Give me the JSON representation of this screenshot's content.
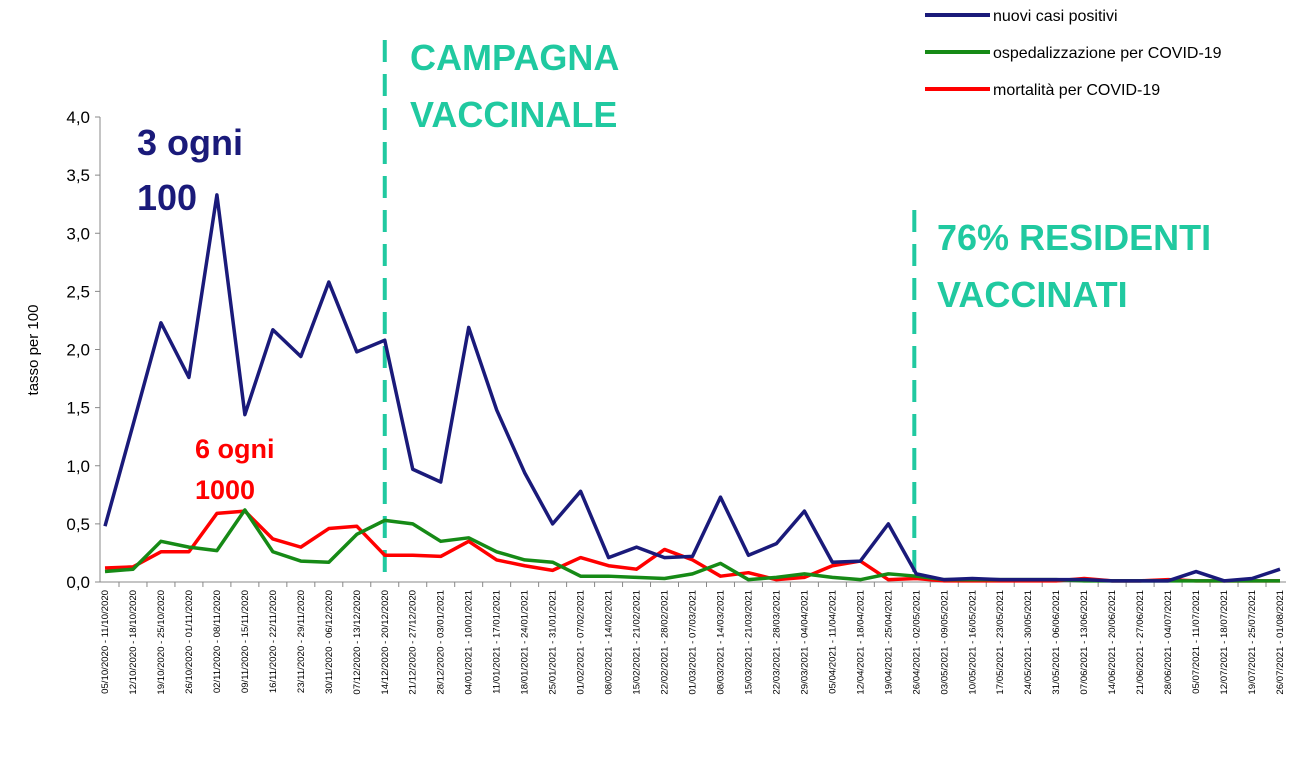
{
  "chart_data": {
    "type": "line",
    "y_label": "tasso per 100",
    "categories": [
      "05/10/2020 - 11/10/2020",
      "12/10/2020 - 18/10/2020",
      "19/10/2020 - 25/10/2020",
      "26/10/2020 - 01/11/2020",
      "02/11/2020 - 08/11/2020",
      "09/11/2020 - 15/11/2020",
      "16/11/2020 - 22/11/2020",
      "23/11/2020 - 29/11/2020",
      "30/11/2020 - 06/12/2020",
      "07/12/2020 - 13/12/2020",
      "14/12/2020 - 20/12/2020",
      "21/12/2020 - 27/12/2020",
      "28/12/2020 - 03/01/2021",
      "04/01/2021 - 10/01/2021",
      "11/01/2021 - 17/01/2021",
      "18/01/2021 - 24/01/2021",
      "25/01/2021 - 31/01/2021",
      "01/02/2021 - 07/02/2021",
      "08/02/2021 - 14/02/2021",
      "15/02/2021 - 21/02/2021",
      "22/02/2021 - 28/02/2021",
      "01/03/2021 - 07/03/2021",
      "08/03/2021 - 14/03/2021",
      "15/03/2021 - 21/03/2021",
      "22/03/2021 - 28/03/2021",
      "29/03/2021 - 04/04/2021",
      "05/04/2021 - 11/04/2021",
      "12/04/2021 - 18/04/2021",
      "19/04/2021 - 25/04/2021",
      "26/04/2021 - 02/05/2021",
      "03/05/2021 - 09/05/2021",
      "10/05/2021 - 16/05/2021",
      "17/05/2021 - 23/05/2021",
      "24/05/2021 - 30/05/2021",
      "31/05/2021 - 06/06/2021",
      "07/06/2021 - 13/06/2021",
      "14/06/2021 - 20/06/2021",
      "21/06/2021 - 27/06/2021",
      "28/06/2021 - 04/07/2021",
      "05/07/2021 - 11/07/2021",
      "12/07/2021 - 18/07/2021",
      "19/07/2021 - 25/07/2021",
      "26/07/2021 - 01/08/2021"
    ],
    "series": [
      {
        "name": "nuovi casi positivi",
        "color": "#1a1a7a",
        "values": [
          0.48,
          1.35,
          2.23,
          1.76,
          3.33,
          1.44,
          2.17,
          1.94,
          2.58,
          1.98,
          2.08,
          0.97,
          0.86,
          2.19,
          1.48,
          0.94,
          0.5,
          0.78,
          0.21,
          0.3,
          0.21,
          0.22,
          0.73,
          0.23,
          0.33,
          0.61,
          0.17,
          0.18,
          0.5,
          0.07,
          0.02,
          0.03,
          0.02,
          0.02,
          0.02,
          0.02,
          0.01,
          0.01,
          0.01,
          0.09,
          0.01,
          0.03,
          0.11
        ]
      },
      {
        "name": "ospedalizzazione per COVID-19",
        "color": "#168a16",
        "values": [
          0.09,
          0.11,
          0.35,
          0.3,
          0.27,
          0.62,
          0.26,
          0.18,
          0.17,
          0.41,
          0.53,
          0.5,
          0.35,
          0.38,
          0.26,
          0.19,
          0.17,
          0.05,
          0.05,
          0.04,
          0.03,
          0.07,
          0.16,
          0.02,
          0.04,
          0.07,
          0.04,
          0.02,
          0.07,
          0.05,
          0.02,
          0.02,
          0.02,
          0.02,
          0.02,
          0.01,
          0.01,
          0.01,
          0.01,
          0.01,
          0.01,
          0.01,
          0.01
        ]
      },
      {
        "name": "mortalità per COVID-19",
        "color": "#ff0000",
        "values": [
          0.12,
          0.13,
          0.26,
          0.26,
          0.59,
          0.61,
          0.37,
          0.3,
          0.46,
          0.48,
          0.23,
          0.23,
          0.22,
          0.35,
          0.19,
          0.14,
          0.1,
          0.21,
          0.14,
          0.11,
          0.28,
          0.19,
          0.05,
          0.08,
          0.02,
          0.04,
          0.14,
          0.18,
          0.02,
          0.03,
          0.01,
          0.01,
          0.01,
          0.01,
          0.01,
          0.03,
          0.01,
          0.01,
          0.02,
          0.01,
          0.01,
          0.01,
          0.01
        ]
      }
    ],
    "ylim": [
      0,
      4
    ],
    "yticks": [
      {
        "value": 0,
        "label": "0,0"
      },
      {
        "value": 0.5,
        "label": "0,5"
      },
      {
        "value": 1,
        "label": "1,0"
      },
      {
        "value": 1.5,
        "label": "1,5"
      },
      {
        "value": 2,
        "label": "2,0"
      },
      {
        "value": 2.5,
        "label": "2,5"
      },
      {
        "value": 3,
        "label": "3,0"
      },
      {
        "value": 3.5,
        "label": "3,5"
      },
      {
        "value": 4,
        "label": "4,0"
      }
    ],
    "legend": "top-right",
    "reference_lines": [
      {
        "category": "14/12/2020 - 20/12/2020",
        "color": "#20c9a0",
        "lines": [
          "CAMPAGNA",
          "VACCINALE"
        ]
      },
      {
        "category": "26/04/2021 - 02/05/2021",
        "color": "#20c9a0",
        "lines": [
          "76% RESIDENTI",
          "VACCINATI"
        ]
      }
    ],
    "annotations": [
      {
        "lines": [
          "3 ogni",
          "100"
        ],
        "color": "#1a1a7a"
      },
      {
        "lines": [
          "6 ogni",
          "1000"
        ],
        "color": "#ff0000"
      }
    ]
  }
}
